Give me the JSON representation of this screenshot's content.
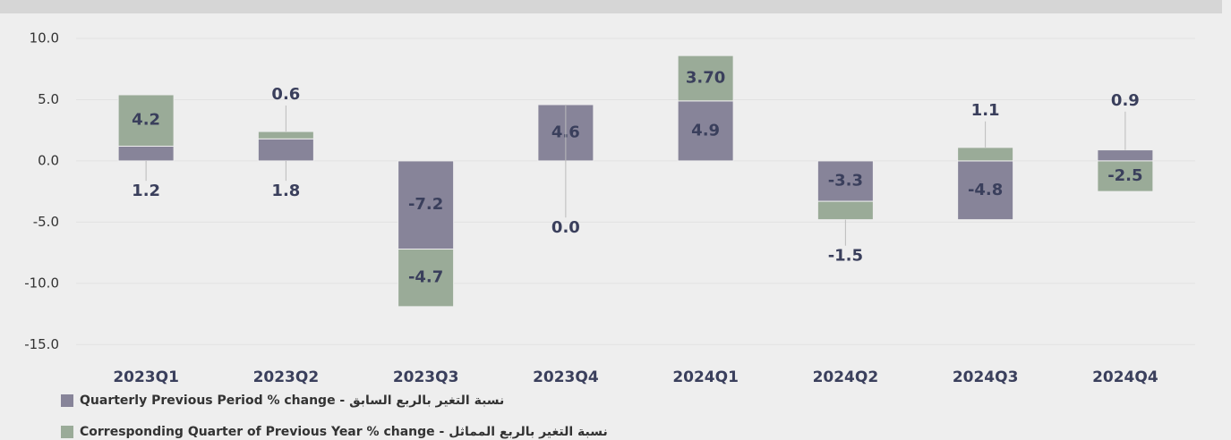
{
  "chart_data": {
    "type": "bar",
    "stacked": true,
    "categories": [
      "2023Q1",
      "2023Q2",
      "2023Q3",
      "2023Q4",
      "2024Q1",
      "2024Q2",
      "2024Q3",
      "2024Q4"
    ],
    "series": [
      {
        "name": "Quarterly  Previous Period % change   - نسبة التغير بالربع السابق",
        "color": "#878499",
        "values": [
          1.2,
          1.8,
          -7.2,
          4.6,
          4.9,
          -3.3,
          -4.8,
          0.9
        ]
      },
      {
        "name": "Corresponding Quarter of Previous Year  % change  - نسبة التغير  بالربع المماثل",
        "color": "#9aab98",
        "values": [
          4.2,
          0.6,
          -4.7,
          0.0,
          3.7,
          -1.5,
          1.1,
          -2.5
        ],
        "value_labels": [
          "4.2",
          "0.6",
          "-4.7",
          "0.0",
          "3.70",
          "-1.5",
          "1.1",
          "-2.5"
        ]
      }
    ],
    "ylim": [
      -16,
      12
    ],
    "yticks": [
      {
        "value": 10,
        "label": "10.0"
      },
      {
        "value": 5,
        "label": "5.0"
      },
      {
        "value": 0,
        "label": "0.0"
      },
      {
        "value": -5,
        "label": "-5.0"
      },
      {
        "value": -10,
        "label": "-10.0"
      },
      {
        "value": -15,
        "label": "-15.0"
      }
    ],
    "grid": true
  }
}
